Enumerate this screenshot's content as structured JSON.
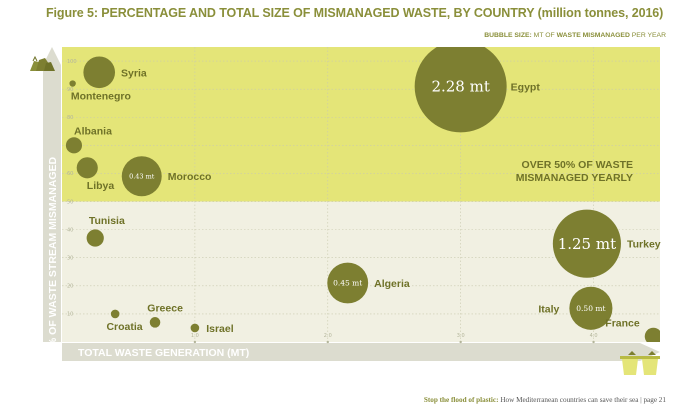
{
  "title": "Figure 5: PERCENTAGE AND TOTAL SIZE OF MISMANAGED WASTE, BY COUNTRY (million tonnes, 2016)",
  "bubble_size_note": {
    "prefix": "BUBBLE SIZE:",
    "mid": "MT OF",
    "emphasis": "WASTE MISMANAGED",
    "suffix": "PER YEAR"
  },
  "footer": {
    "lead": "Stop the flood of plastic:",
    "rest": "How Mediterranean countries can save their sea | page 21"
  },
  "colors": {
    "highlight_band": "#e4e578",
    "lower_band": "#f1f0e2",
    "bubble": "#7d7f31",
    "axis_band": "#dcdccf",
    "text": "#6f7228"
  },
  "icons": [
    "waste-bags-icon",
    "waste-bins-icon"
  ],
  "chart_data": {
    "type": "scatter",
    "xlabel": "TOTAL WASTE GENERATION (MT)",
    "ylabel": "% OF WASTE STREAM MISMANAGED",
    "xlim": [
      0,
      4.5
    ],
    "ylim": [
      0,
      105
    ],
    "x_ticks": [
      {
        "value": 1.0,
        "label": "1.0"
      },
      {
        "value": 2.0,
        "label": "2.0"
      },
      {
        "value": 3.0,
        "label": "3.0"
      },
      {
        "value": 4.0,
        "label": "4.0"
      }
    ],
    "y_ticks": [
      {
        "value": 100,
        "label": "100"
      },
      {
        "value": 90,
        "label": "90"
      },
      {
        "value": 80,
        "label": "80"
      },
      {
        "value": 70,
        "label": "70"
      },
      {
        "value": 60,
        "label": "60"
      },
      {
        "value": 50,
        "label": "50"
      },
      {
        "value": 40,
        "label": "40"
      },
      {
        "value": 30,
        "label": "30"
      },
      {
        "value": 20,
        "label": "20"
      },
      {
        "value": 10,
        "label": "10"
      }
    ],
    "highlight_threshold": 50,
    "annotation": [
      "OVER 50% OF WASTE",
      "MISMANAGED YEARLY"
    ],
    "points": [
      {
        "country": "Syria",
        "x": 0.28,
        "y": 96,
        "size_mt": 0.27,
        "bubble_label": ""
      },
      {
        "country": "Montenegro",
        "x": 0.08,
        "y": 92,
        "size_mt": 0.01,
        "bubble_label": ""
      },
      {
        "country": "Albania",
        "x": 0.09,
        "y": 70,
        "size_mt": 0.07,
        "bubble_label": ""
      },
      {
        "country": "Libya",
        "x": 0.19,
        "y": 62,
        "size_mt": 0.12,
        "bubble_label": ""
      },
      {
        "country": "Morocco",
        "x": 0.6,
        "y": 59,
        "size_mt": 0.43,
        "bubble_label": "0.43 mt"
      },
      {
        "country": "Egypt",
        "x": 3.0,
        "y": 91,
        "size_mt": 2.28,
        "bubble_label": "2.28 mt"
      },
      {
        "country": "Tunisia",
        "x": 0.25,
        "y": 37,
        "size_mt": 0.08,
        "bubble_label": ""
      },
      {
        "country": "Turkey",
        "x": 3.95,
        "y": 35,
        "size_mt": 1.25,
        "bubble_label": "1.25 mt"
      },
      {
        "country": "Algeria",
        "x": 2.15,
        "y": 21,
        "size_mt": 0.45,
        "bubble_label": "0.45 mt"
      },
      {
        "country": "Croatia",
        "x": 0.4,
        "y": 10,
        "size_mt": 0.02,
        "bubble_label": ""
      },
      {
        "country": "Greece",
        "x": 0.7,
        "y": 7,
        "size_mt": 0.03,
        "bubble_label": ""
      },
      {
        "country": "Italy",
        "x": 3.98,
        "y": 12,
        "size_mt": 0.5,
        "bubble_label": "0.50 mt"
      },
      {
        "country": "Israel",
        "x": 1.0,
        "y": 5,
        "size_mt": 0.02,
        "bubble_label": ""
      },
      {
        "country": "France",
        "x": 4.45,
        "y": 2,
        "size_mt": 0.08,
        "bubble_label": ""
      }
    ]
  }
}
